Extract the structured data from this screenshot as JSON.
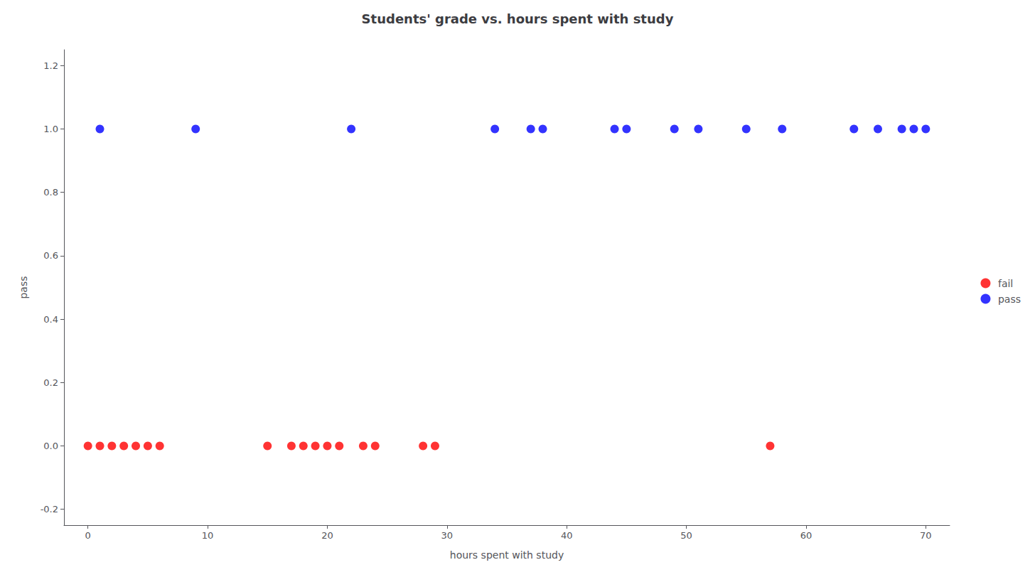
{
  "chart_data": {
    "type": "scatter",
    "title": "Students' grade vs. hours spent with study",
    "xlabel": "hours spent with study",
    "ylabel": "pass",
    "series": [
      {
        "name": "fail",
        "color": "#ff0000",
        "x": [
          0,
          1,
          2,
          3,
          4,
          5,
          6,
          15,
          17,
          18,
          19,
          20,
          21,
          23,
          24,
          28,
          29,
          57
        ],
        "values": [
          0,
          0,
          0,
          0,
          0,
          0,
          0,
          0,
          0,
          0,
          0,
          0,
          0,
          0,
          0,
          0,
          0,
          0
        ]
      },
      {
        "name": "pass",
        "color": "#0000ff",
        "x": [
          1,
          9,
          22,
          34,
          37,
          38,
          44,
          45,
          49,
          51,
          55,
          58,
          64,
          66,
          68,
          69,
          70
        ],
        "values": [
          1,
          1,
          1,
          1,
          1,
          1,
          1,
          1,
          1,
          1,
          1,
          1,
          1,
          1,
          1,
          1,
          1
        ]
      }
    ],
    "xlim": [
      -2,
      72
    ],
    "ylim": [
      -0.25,
      1.25
    ],
    "xticks": [
      0,
      10,
      20,
      30,
      40,
      50,
      60,
      70
    ],
    "yticks": [
      -0.2,
      {
        "value": 0.0,
        "label": "0.0"
      },
      0.2,
      0.4,
      0.6,
      0.8,
      {
        "value": 1.0,
        "label": "1.0"
      },
      1.2
    ],
    "grid": false,
    "legend": "right"
  }
}
